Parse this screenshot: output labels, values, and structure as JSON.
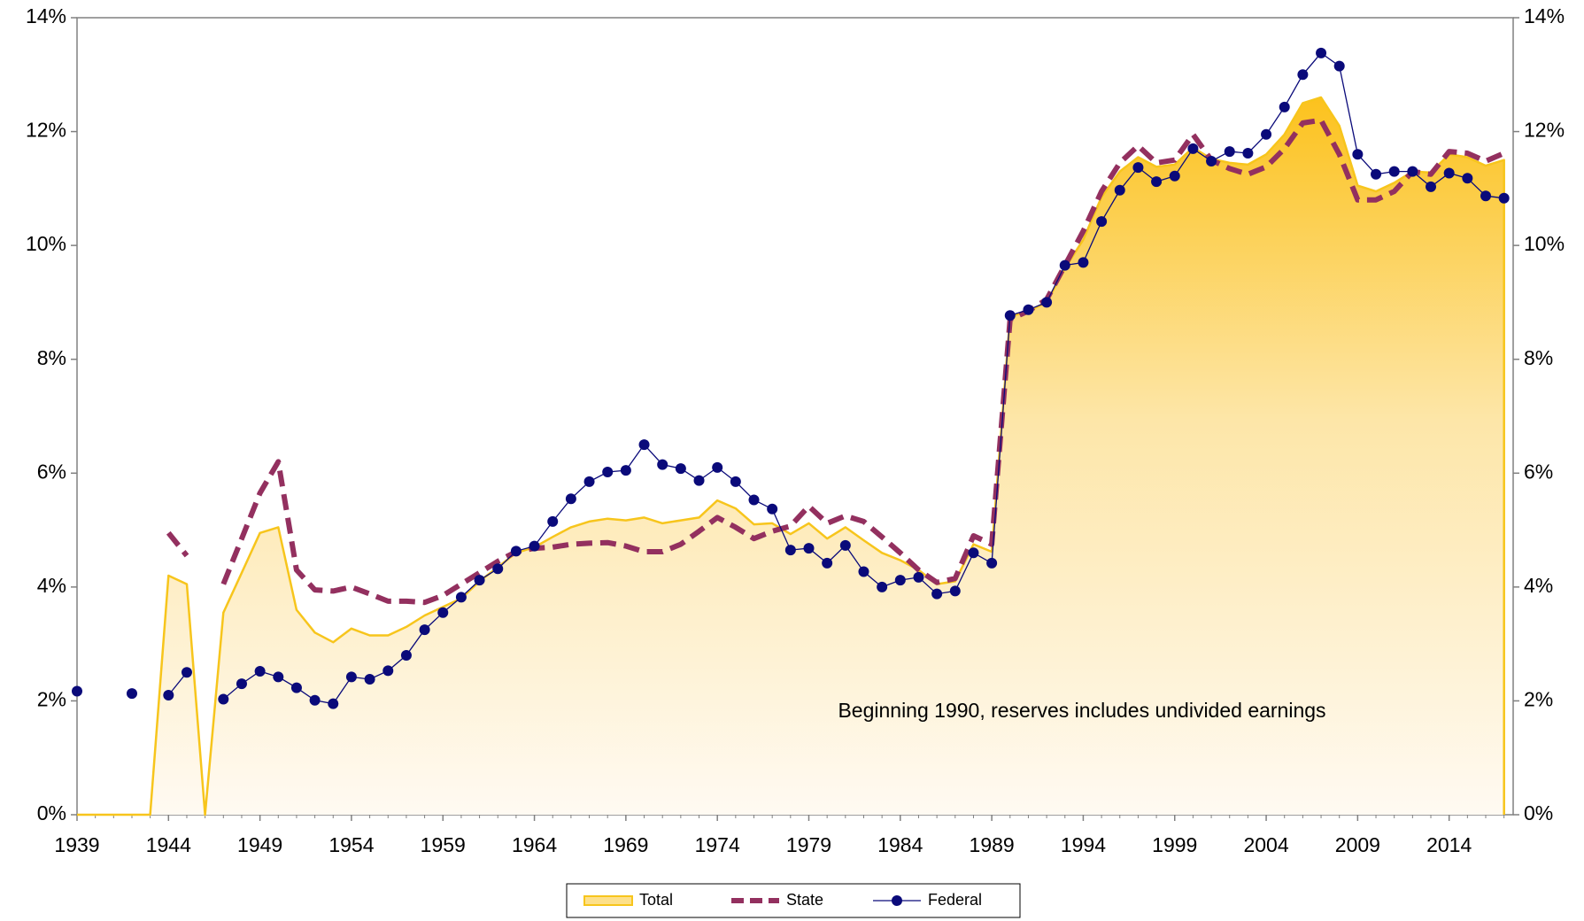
{
  "chart_data": {
    "type": "line",
    "annotation": "Beginning 1990, reserves includes undivided earnings",
    "x": [
      1939,
      1940,
      1941,
      1942,
      1943,
      1944,
      1945,
      1946,
      1947,
      1948,
      1949,
      1950,
      1951,
      1952,
      1953,
      1954,
      1955,
      1956,
      1957,
      1958,
      1959,
      1960,
      1961,
      1962,
      1963,
      1964,
      1965,
      1966,
      1967,
      1968,
      1969,
      1970,
      1971,
      1972,
      1973,
      1974,
      1975,
      1976,
      1977,
      1978,
      1979,
      1980,
      1981,
      1982,
      1983,
      1984,
      1985,
      1986,
      1987,
      1988,
      1989,
      1990,
      1991,
      1992,
      1993,
      1994,
      1995,
      1996,
      1997,
      1998,
      1999,
      2000,
      2001,
      2002,
      2003,
      2004,
      2005,
      2006,
      2007,
      2008,
      2009,
      2010,
      2011,
      2012,
      2013,
      2014,
      2015,
      2016,
      2017
    ],
    "xlim": [
      1939,
      2017.5
    ],
    "xticks": [
      1939,
      1944,
      1949,
      1954,
      1959,
      1964,
      1969,
      1974,
      1979,
      1984,
      1989,
      1994,
      1999,
      2004,
      2009,
      2014
    ],
    "ylim": [
      0,
      14
    ],
    "yticks": [
      {
        "value": 0,
        "label": "0%"
      },
      {
        "value": 2,
        "label": "2%"
      },
      {
        "value": 4,
        "label": "4%"
      },
      {
        "value": 6,
        "label": "6%"
      },
      {
        "value": 8,
        "label": "8%"
      },
      {
        "value": 10,
        "label": "10%"
      },
      {
        "value": 12,
        "label": "12%"
      },
      {
        "value": 14,
        "label": "14%"
      }
    ],
    "y2lim": [
      0,
      14
    ],
    "y2ticks": [
      {
        "value": 0,
        "label": "0%"
      },
      {
        "value": 2,
        "label": "2%"
      },
      {
        "value": 4,
        "label": "4%"
      },
      {
        "value": 6,
        "label": "6%"
      },
      {
        "value": 8,
        "label": "8%"
      },
      {
        "value": 10,
        "label": "10%"
      },
      {
        "value": 12,
        "label": "12%"
      },
      {
        "value": 14,
        "label": "14%"
      }
    ],
    "series": [
      {
        "name": "Total",
        "color": "#f7c51c",
        "kind": "area",
        "values": [
          0,
          0,
          0,
          0,
          0,
          4.2,
          4.05,
          0,
          3.55,
          4.25,
          4.95,
          5.05,
          3.6,
          3.2,
          3.03,
          3.27,
          3.15,
          3.15,
          3.3,
          3.5,
          3.65,
          3.8,
          4.1,
          4.35,
          4.6,
          4.7,
          4.88,
          5.05,
          5.15,
          5.2,
          5.17,
          5.22,
          5.12,
          5.17,
          5.22,
          5.52,
          5.38,
          5.1,
          5.12,
          4.93,
          5.12,
          4.85,
          5.05,
          4.82,
          4.6,
          4.47,
          4.3,
          4.05,
          4.1,
          4.75,
          4.62,
          8.75,
          8.85,
          9.0,
          9.6,
          10.1,
          10.85,
          11.3,
          11.55,
          11.38,
          11.42,
          11.72,
          11.52,
          11.45,
          11.42,
          11.6,
          11.95,
          12.5,
          12.6,
          12.1,
          11.05,
          10.95,
          11.1,
          11.3,
          11.28,
          11.6,
          11.55,
          11.4,
          11.5
        ]
      },
      {
        "name": "State",
        "color": "#93305f",
        "kind": "dashed",
        "values": [
          null,
          null,
          null,
          null,
          null,
          4.95,
          4.55,
          null,
          4.05,
          4.85,
          5.65,
          6.2,
          4.3,
          3.95,
          3.93,
          4.0,
          3.88,
          3.75,
          3.75,
          3.73,
          3.85,
          4.05,
          4.25,
          4.45,
          4.62,
          4.68,
          4.7,
          4.75,
          4.77,
          4.78,
          4.72,
          4.62,
          4.62,
          4.75,
          4.98,
          5.22,
          5.05,
          4.85,
          4.98,
          5.07,
          5.42,
          5.12,
          5.25,
          5.15,
          4.88,
          4.6,
          4.3,
          4.08,
          4.15,
          4.9,
          4.75,
          8.7,
          8.85,
          9.05,
          9.65,
          10.25,
          10.95,
          11.45,
          11.75,
          11.45,
          11.5,
          11.95,
          11.5,
          11.35,
          11.25,
          11.38,
          11.7,
          12.15,
          12.2,
          11.6,
          10.8,
          10.8,
          10.95,
          11.3,
          11.25,
          11.65,
          11.62,
          11.48,
          11.62
        ]
      },
      {
        "name": "Federal",
        "color": "#0a0a7a",
        "kind": "markers",
        "axis": "y2",
        "values": [
          2.17,
          null,
          null,
          2.13,
          null,
          2.1,
          2.5,
          null,
          2.03,
          2.3,
          2.52,
          2.42,
          2.23,
          2.01,
          1.95,
          2.42,
          2.38,
          2.53,
          2.8,
          3.25,
          3.55,
          3.82,
          4.12,
          4.32,
          4.63,
          4.72,
          5.15,
          5.55,
          5.85,
          6.02,
          6.05,
          6.5,
          6.15,
          6.08,
          5.87,
          6.1,
          5.85,
          5.53,
          5.37,
          4.65,
          4.68,
          4.42,
          4.73,
          4.27,
          4.0,
          4.12,
          4.17,
          3.88,
          3.93,
          4.6,
          4.42,
          8.77,
          8.87,
          9.0,
          9.65,
          9.7,
          10.42,
          10.97,
          11.37,
          11.12,
          11.22,
          11.7,
          11.48,
          11.65,
          11.62,
          11.95,
          12.43,
          13.0,
          13.38,
          13.15,
          11.6,
          11.25,
          11.3,
          11.3,
          11.03,
          11.27,
          11.18,
          10.87,
          10.83
        ]
      }
    ]
  }
}
